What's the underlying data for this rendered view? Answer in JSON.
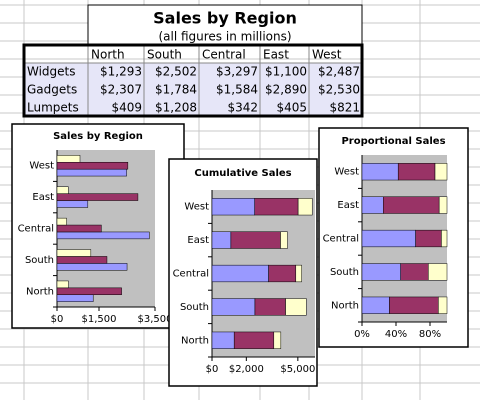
{
  "table": {
    "title": "Sales by Region",
    "subtitle": "(all figures in millions)",
    "columns": [
      "North",
      "South",
      "Central",
      "East",
      "West"
    ],
    "rows": [
      {
        "label": "Widgets",
        "cells": [
          "$1,293",
          "$2,502",
          "$3,297",
          "$1,100",
          "$2,487"
        ]
      },
      {
        "label": "Gadgets",
        "cells": [
          "$2,307",
          "$1,784",
          "$1,584",
          "$2,890",
          "$2,530"
        ]
      },
      {
        "label": "Lumpets",
        "cells": [
          "$409",
          "$1,208",
          "$342",
          "$405",
          "$821"
        ]
      }
    ]
  },
  "chart_data": [
    {
      "type": "bar",
      "orientation": "horizontal",
      "stacked": false,
      "title": "Sales by Region",
      "categories": [
        "North",
        "South",
        "Central",
        "East",
        "West"
      ],
      "series": [
        {
          "color": "#9999ff",
          "values": [
            1293,
            2502,
            3297,
            1100,
            2487
          ]
        },
        {
          "color": "#993366",
          "values": [
            2307,
            1784,
            1584,
            2890,
            2530
          ]
        },
        {
          "color": "#ffffcc",
          "values": [
            409,
            1208,
            342,
            405,
            821
          ]
        }
      ],
      "xlim": [
        0,
        3500
      ],
      "xticks": [
        {
          "value": 0,
          "label": "$0"
        },
        {
          "value": 1500,
          "label": "$1,500"
        },
        {
          "value": 3500,
          "label": "$3,500"
        }
      ]
    },
    {
      "type": "bar",
      "orientation": "horizontal",
      "stacked": true,
      "title": "Cumulative Sales",
      "categories": [
        "North",
        "South",
        "Central",
        "East",
        "West"
      ],
      "series": [
        {
          "color": "#9999ff",
          "values": [
            1293,
            2502,
            3297,
            1100,
            2487
          ]
        },
        {
          "color": "#993366",
          "values": [
            2307,
            1784,
            1584,
            2890,
            2530
          ]
        },
        {
          "color": "#ffffcc",
          "values": [
            409,
            1208,
            342,
            405,
            821
          ]
        }
      ],
      "xlim": [
        0,
        6000
      ],
      "xticks": [
        {
          "value": 0,
          "label": "$0"
        },
        {
          "value": 2000,
          "label": "$2,000"
        },
        {
          "value": 5000,
          "label": "$5,000"
        }
      ]
    },
    {
      "type": "bar",
      "orientation": "horizontal",
      "stacked": true,
      "title": "Proportional Sales",
      "categories": [
        "North",
        "South",
        "Central",
        "East",
        "West"
      ],
      "series": [
        {
          "color": "#9999ff",
          "values": [
            32.3,
            45.5,
            63.1,
            25.0,
            42.6
          ]
        },
        {
          "color": "#993366",
          "values": [
            57.5,
            32.5,
            30.3,
            65.8,
            43.3
          ]
        },
        {
          "color": "#ffffcc",
          "values": [
            10.2,
            22.0,
            6.6,
            9.2,
            14.1
          ]
        }
      ],
      "xlim": [
        0,
        100
      ],
      "xticks": [
        {
          "value": 0,
          "label": "0%"
        },
        {
          "value": 40,
          "label": "40%"
        },
        {
          "value": 80,
          "label": "80%"
        }
      ]
    }
  ]
}
